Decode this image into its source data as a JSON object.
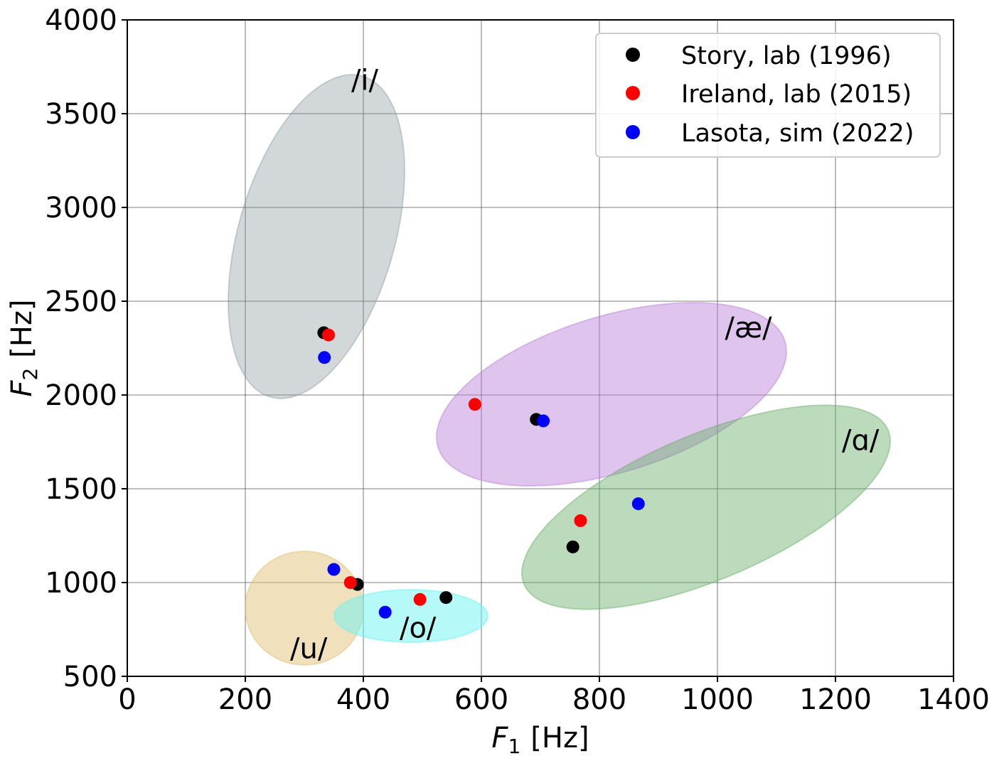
{
  "chart_data": {
    "type": "scatter",
    "title": "",
    "xlabel": {
      "symbol": "F",
      "subscript": "1",
      "unit": "[Hz]"
    },
    "ylabel": {
      "symbol": "F",
      "subscript": "2",
      "unit": "[Hz]"
    },
    "xlim": [
      0,
      1400
    ],
    "ylim": [
      500,
      4000
    ],
    "xticks": [
      0,
      200,
      400,
      600,
      800,
      1000,
      1200,
      1400
    ],
    "yticks": [
      500,
      1000,
      1500,
      2000,
      2500,
      3000,
      3500,
      4000
    ],
    "grid": true,
    "legend_position": "top-right",
    "regions": [
      {
        "label": "/i/",
        "color": "#7f8c95",
        "center": [
          320,
          2650
        ],
        "label_at": [
          400,
          3680
        ]
      },
      {
        "label": "/æ/",
        "color": "#b77ed8",
        "center": [
          860,
          1810
        ],
        "label_at": [
          1050,
          2360
        ]
      },
      {
        "label": "/ɑ/",
        "color": "#6aaf6a",
        "center": [
          1012,
          1360
        ],
        "label_at": [
          1240,
          1760
        ]
      },
      {
        "label": "/u/",
        "color": "#e2c47a",
        "center": [
          298,
          860
        ],
        "label_at": [
          305,
          650
        ]
      },
      {
        "label": "/o/",
        "color": "#6cf4f4",
        "center": [
          482,
          820
        ],
        "label_at": [
          490,
          760
        ]
      }
    ],
    "series": [
      {
        "name": "Story, lab (1996)",
        "color": "#000000",
        "points": [
          [
            333,
            2332
          ],
          [
            390,
            990
          ],
          [
            540,
            920
          ],
          [
            693,
            1870
          ],
          [
            755,
            1190
          ]
        ]
      },
      {
        "name": "Ireland, lab (2015)",
        "color": "#ff0000",
        "points": [
          [
            341,
            2320
          ],
          [
            378,
            1000
          ],
          [
            496,
            910
          ],
          [
            589,
            1950
          ],
          [
            768,
            1330
          ]
        ]
      },
      {
        "name": "Lasota, sim (2022)",
        "color": "#0000ff",
        "points": [
          [
            334,
            2200
          ],
          [
            350,
            1070
          ],
          [
            437,
            842
          ],
          [
            705,
            1862
          ],
          [
            866,
            1420
          ]
        ]
      }
    ]
  }
}
